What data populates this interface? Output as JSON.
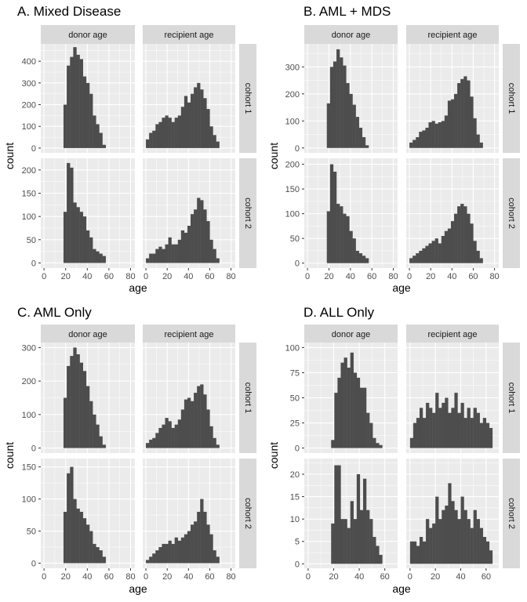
{
  "theme": {
    "panel_bg": "#ebebeb",
    "grid_major": "#ffffff",
    "strip_bg": "#d9d9d9",
    "bar_fill": "#4d4d4d"
  },
  "chart_data": [
    {
      "type": "histogram",
      "title": "A. Mixed Disease",
      "xlabel": "age",
      "ylabel": "count",
      "col_facets": [
        "donor age",
        "recipient age"
      ],
      "row_facets": [
        "cohort 1",
        "cohort 2"
      ],
      "xlim": [
        -3,
        84
      ],
      "xticks": [
        0,
        20,
        40,
        60,
        80
      ],
      "yticks": [
        [
          0,
          100,
          200,
          300,
          400
        ],
        [
          0,
          50,
          100,
          150,
          200
        ]
      ],
      "ylim": [
        [
          -22,
          480
        ],
        [
          -11,
          225
        ]
      ],
      "bins": [
        {
          "row": 0,
          "col": 0,
          "start": 18,
          "width": 3,
          "values": [
            200,
            380,
            420,
            465,
            430,
            410,
            330,
            300,
            250,
            150,
            110,
            70,
            15
          ]
        },
        {
          "row": 0,
          "col": 1,
          "start": 0,
          "width": 3,
          "values": [
            40,
            70,
            80,
            110,
            120,
            140,
            150,
            140,
            120,
            140,
            150,
            190,
            240,
            210,
            250,
            280,
            300,
            270,
            230,
            180,
            100,
            60,
            30
          ]
        },
        {
          "row": 1,
          "col": 0,
          "start": 18,
          "width": 3,
          "values": [
            110,
            215,
            205,
            130,
            120,
            110,
            100,
            70,
            55,
            30,
            25,
            20,
            15
          ]
        },
        {
          "row": 1,
          "col": 1,
          "start": 0,
          "width": 3,
          "values": [
            10,
            20,
            20,
            30,
            35,
            30,
            40,
            55,
            40,
            40,
            50,
            70,
            65,
            80,
            105,
            115,
            140,
            135,
            115,
            90,
            50,
            30,
            10
          ]
        }
      ]
    },
    {
      "type": "histogram",
      "title": "B. AML + MDS",
      "xlabel": "age",
      "ylabel": "count",
      "col_facets": [
        "donor age",
        "recipient age"
      ],
      "row_facets": [
        "cohort 1",
        "cohort 2"
      ],
      "xlim": [
        -3,
        84
      ],
      "xticks": [
        0,
        20,
        40,
        60,
        80
      ],
      "yticks": [
        [
          0,
          100,
          200,
          300
        ],
        [
          0,
          50,
          100,
          150,
          200
        ]
      ],
      "ylim": [
        [
          -18,
          385
        ],
        [
          -10,
          212
        ]
      ],
      "bins": [
        {
          "row": 0,
          "col": 0,
          "start": 18,
          "width": 3,
          "values": [
            165,
            300,
            320,
            365,
            335,
            305,
            240,
            200,
            160,
            115,
            75,
            40,
            10
          ]
        },
        {
          "row": 0,
          "col": 1,
          "start": 0,
          "width": 3,
          "values": [
            20,
            30,
            40,
            60,
            65,
            75,
            95,
            100,
            90,
            95,
            100,
            120,
            175,
            180,
            200,
            240,
            255,
            265,
            250,
            190,
            110,
            50,
            20
          ]
        },
        {
          "row": 1,
          "col": 0,
          "start": 18,
          "width": 3,
          "values": [
            105,
            200,
            185,
            120,
            115,
            100,
            95,
            65,
            50,
            25,
            20,
            15,
            10
          ]
        },
        {
          "row": 1,
          "col": 1,
          "start": 0,
          "width": 3,
          "values": [
            10,
            15,
            20,
            25,
            30,
            35,
            40,
            45,
            50,
            40,
            55,
            65,
            70,
            85,
            100,
            115,
            120,
            115,
            100,
            80,
            45,
            25,
            10
          ]
        }
      ]
    },
    {
      "type": "histogram",
      "title": "C. AML Only",
      "xlabel": "age",
      "ylabel": "count",
      "col_facets": [
        "donor age",
        "recipient age"
      ],
      "row_facets": [
        "cohort 1",
        "cohort 2"
      ],
      "xlim": [
        -3,
        84
      ],
      "xticks": [
        0,
        20,
        40,
        60,
        80
      ],
      "yticks": [
        [
          0,
          100,
          200,
          300
        ],
        [
          0,
          50,
          100,
          150
        ]
      ],
      "ylim": [
        [
          -15,
          315
        ],
        [
          -8,
          163
        ]
      ],
      "bins": [
        {
          "row": 0,
          "col": 0,
          "start": 18,
          "width": 3,
          "values": [
            150,
            245,
            275,
            300,
            280,
            255,
            230,
            185,
            140,
            100,
            70,
            35,
            10
          ]
        },
        {
          "row": 0,
          "col": 1,
          "start": 0,
          "width": 3,
          "values": [
            15,
            25,
            30,
            45,
            60,
            70,
            90,
            80,
            60,
            70,
            85,
            115,
            145,
            150,
            140,
            165,
            185,
            190,
            160,
            115,
            65,
            30,
            10
          ]
        },
        {
          "row": 1,
          "col": 0,
          "start": 18,
          "width": 3,
          "values": [
            80,
            140,
            150,
            100,
            85,
            80,
            70,
            60,
            50,
            30,
            25,
            20,
            10
          ]
        },
        {
          "row": 1,
          "col": 1,
          "start": 0,
          "width": 3,
          "values": [
            5,
            10,
            15,
            20,
            25,
            30,
            30,
            35,
            30,
            40,
            35,
            40,
            45,
            50,
            60,
            65,
            80,
            100,
            80,
            60,
            45,
            20,
            10
          ]
        }
      ]
    },
    {
      "type": "histogram",
      "title": "D. ALL Only",
      "xlabel": "age",
      "ylabel": "count",
      "col_facets": [
        "donor age",
        "recipient age"
      ],
      "row_facets": [
        "cohort 1",
        "cohort 2"
      ],
      "xlim": [
        -3,
        70
      ],
      "xticks": [
        0,
        20,
        40,
        60
      ],
      "yticks": [
        [
          0,
          25,
          50,
          75,
          100
        ],
        [
          0,
          5,
          10,
          15,
          20
        ]
      ],
      "ylim": [
        [
          -5,
          105
        ],
        [
          -1,
          23.5
        ]
      ],
      "bins": [
        {
          "row": 0,
          "col": 0,
          "start": 18,
          "width": 2.5,
          "values": [
            8,
            55,
            70,
            85,
            90,
            80,
            95,
            75,
            70,
            60,
            60,
            35,
            25,
            10,
            5,
            3
          ]
        },
        {
          "row": 0,
          "col": 1,
          "start": 0,
          "width": 2.5,
          "values": [
            10,
            25,
            30,
            40,
            30,
            45,
            40,
            35,
            55,
            40,
            45,
            50,
            35,
            40,
            55,
            35,
            45,
            30,
            40,
            30,
            40,
            35,
            25,
            30,
            25,
            20
          ]
        },
        {
          "row": 1,
          "col": 0,
          "start": 18,
          "width": 2.5,
          "values": [
            9,
            22,
            22,
            10,
            10,
            8,
            14,
            10,
            20,
            12,
            19,
            12,
            10,
            6,
            4,
            2
          ]
        },
        {
          "row": 1,
          "col": 1,
          "start": 0,
          "width": 2.5,
          "values": [
            5,
            5,
            4,
            6,
            5,
            10,
            8,
            9,
            15,
            10,
            12,
            13,
            18,
            14,
            12,
            10,
            15,
            12,
            10,
            8,
            12,
            10,
            8,
            6,
            5,
            3
          ]
        }
      ]
    }
  ]
}
